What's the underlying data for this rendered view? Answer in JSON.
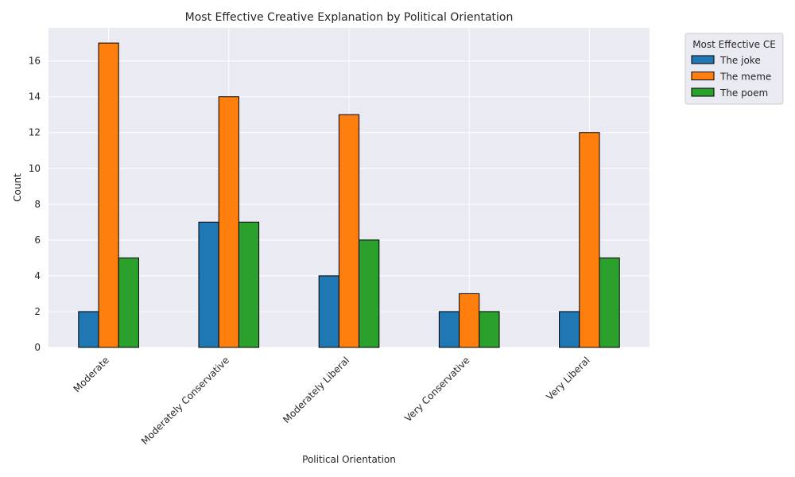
{
  "chart_data": {
    "type": "bar",
    "title": "Most Effective Creative Explanation by Political Orientation",
    "xlabel": "Political Orientation",
    "ylabel": "Count",
    "categories": [
      "Moderate",
      "Moderately Conservative",
      "Moderately Liberal",
      "Very Conservative",
      "Very Liberal"
    ],
    "series": [
      {
        "name": "The joke",
        "values": [
          2,
          7,
          4,
          2,
          2
        ],
        "color": "#1f77b4"
      },
      {
        "name": "The meme",
        "values": [
          17,
          14,
          13,
          3,
          12
        ],
        "color": "#ff7f0e"
      },
      {
        "name": "The poem",
        "values": [
          5,
          7,
          6,
          2,
          5
        ],
        "color": "#2ca02c"
      }
    ],
    "ylim": [
      0,
      17.85
    ],
    "yticks": [
      0,
      2,
      4,
      6,
      8,
      10,
      12,
      14,
      16
    ],
    "legend": {
      "title": "Most Effective CE",
      "placement": "outside top-right"
    },
    "grid": true,
    "background": "#eaeaf2",
    "grid_color": "#ffffff",
    "bar_edge_color": "#000000"
  }
}
